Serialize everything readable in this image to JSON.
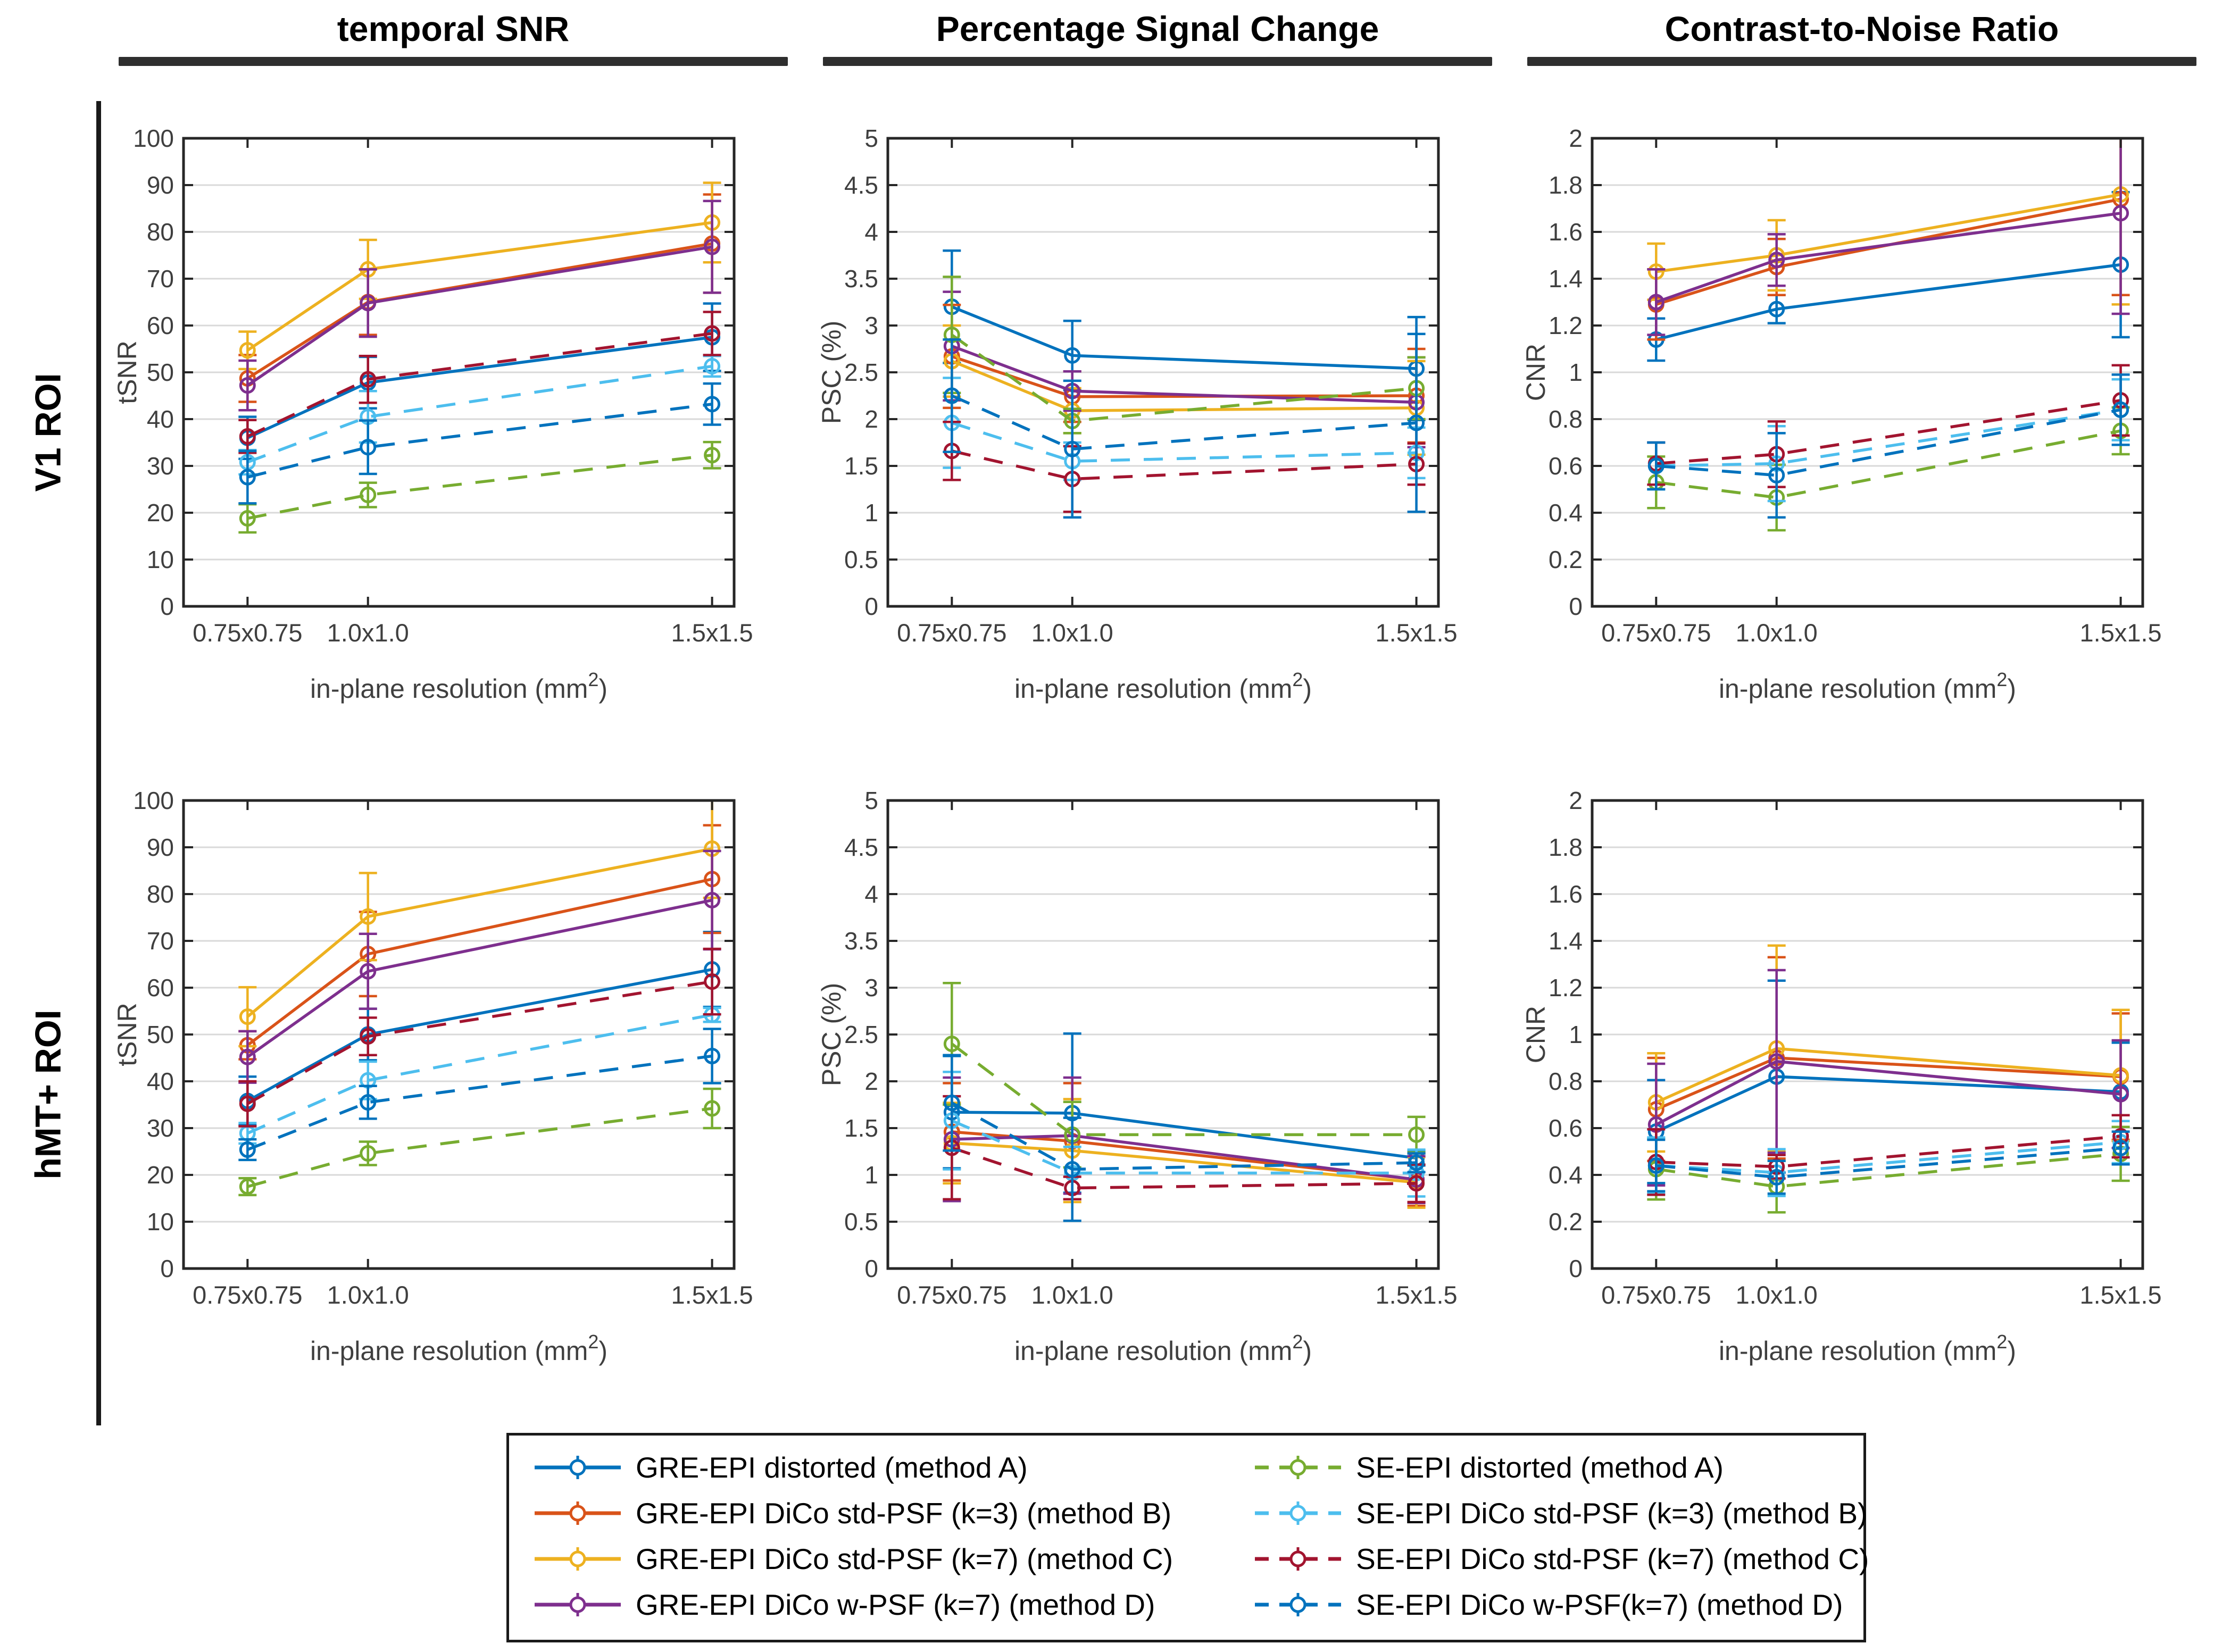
{
  "figure": {
    "column_titles": [
      "temporal SNR",
      "Percentage Signal Change",
      "Contrast-to-Noise Ratio"
    ],
    "row_labels": [
      "V1 ROI",
      "hMT+ ROI"
    ],
    "axis_color": "#262626",
    "tick_label_color": "#3f3f3f",
    "grid_color": "#d9d9d9"
  },
  "series_defs": [
    {
      "id": "gre-a",
      "label": "GRE-EPI distorted (method A)",
      "color": "#0072BD",
      "dashed": false
    },
    {
      "id": "gre-b",
      "label": "GRE-EPI DiCo std-PSF (k=3) (method B)",
      "color": "#D95319",
      "dashed": false
    },
    {
      "id": "gre-c",
      "label": "GRE-EPI DiCo std-PSF (k=7) (method C)",
      "color": "#EDB120",
      "dashed": false
    },
    {
      "id": "gre-d",
      "label": "GRE-EPI DiCo w-PSF (k=7) (method D)",
      "color": "#7E2F8E",
      "dashed": false
    },
    {
      "id": "se-a",
      "label": "SE-EPI distorted (method A)",
      "color": "#77AC30",
      "dashed": true
    },
    {
      "id": "se-b",
      "label": "SE-EPI DiCo std-PSF (k=3) (method B)",
      "color": "#4DBEEE",
      "dashed": true
    },
    {
      "id": "se-c",
      "label": "SE-EPI DiCo std-PSF (k=7) (method C)",
      "color": "#A2142F",
      "dashed": true
    },
    {
      "id": "se-d",
      "label": "SE-EPI DiCo w-PSF(k=7) (method D)",
      "color": "#0072BD",
      "dashed": true
    }
  ],
  "x_axis": {
    "x": [
      0.5625,
      1.0,
      2.25
    ],
    "xlim": [
      0.33,
      2.33
    ],
    "tick_labels": [
      "0.75x0.75",
      "1.0x1.0",
      "1.5x1.5"
    ],
    "label_pre": "in-plane resolution (mm",
    "label_sup": "2",
    "label_post": ")"
  },
  "chart_data": [
    {
      "type": "line",
      "row": "V1 ROI",
      "column": "temporal SNR",
      "ylabel": "tSNR",
      "ylim": [
        0,
        100
      ],
      "yticks": [
        0,
        10,
        20,
        30,
        40,
        50,
        60,
        70,
        80,
        90,
        100
      ],
      "ytick_labels": [
        "0",
        "10",
        "20",
        "30",
        "40",
        "50",
        "60",
        "70",
        "80",
        "90",
        "100"
      ],
      "series": [
        {
          "name": "GRE-EPI distorted (method A)",
          "values": [
            36.0,
            47.8,
            57.5
          ],
          "err": [
            4.5,
            5.5,
            7.2
          ]
        },
        {
          "name": "GRE-EPI DiCo std-PSF (k=3) (method B)",
          "values": [
            48.7,
            65.0,
            77.5
          ],
          "err": [
            5.0,
            7.0,
            10.5
          ]
        },
        {
          "name": "GRE-EPI DiCo std-PSF (k=7) (method C)",
          "values": [
            54.7,
            72.0,
            82.0
          ],
          "err": [
            4.0,
            6.3,
            8.5
          ]
        },
        {
          "name": "GRE-EPI DiCo w-PSF (k=7) (method D)",
          "values": [
            47.2,
            64.8,
            76.8
          ],
          "err": [
            5.3,
            7.2,
            9.8
          ]
        },
        {
          "name": "SE-EPI distorted (method A)",
          "values": [
            18.8,
            23.8,
            32.3
          ],
          "err": [
            3.0,
            2.6,
            2.8
          ]
        },
        {
          "name": "SE-EPI DiCo std-PSF (k=3) (method B)",
          "values": [
            30.8,
            40.5,
            51.3
          ],
          "err": [
            2.6,
            5.5,
            2.2
          ]
        },
        {
          "name": "SE-EPI DiCo std-PSF (k=7) (method C)",
          "values": [
            36.3,
            48.5,
            58.3
          ],
          "err": [
            3.5,
            5.0,
            4.6
          ]
        },
        {
          "name": "SE-EPI DiCo w-PSF(k=7) (method D)",
          "values": [
            27.6,
            34.0,
            43.2
          ],
          "err": [
            5.6,
            5.7,
            4.4
          ]
        }
      ]
    },
    {
      "type": "line",
      "row": "V1 ROI",
      "column": "Percentage Signal Change",
      "ylabel": "PSC (%)",
      "ylim": [
        0,
        5
      ],
      "yticks": [
        0,
        0.5,
        1,
        1.5,
        2,
        2.5,
        3,
        3.5,
        4,
        4.5,
        5
      ],
      "ytick_labels": [
        "0",
        "0.5",
        "1",
        "1.5",
        "2",
        "2.5",
        "3",
        "3.5",
        "4",
        "4.5",
        "5"
      ],
      "series": [
        {
          "name": "GRE-EPI distorted (method A)",
          "values": [
            3.2,
            2.68,
            2.54
          ],
          "err": [
            0.6,
            0.37,
            0.55
          ]
        },
        {
          "name": "GRE-EPI DiCo std-PSF (k=3) (method B)",
          "values": [
            2.67,
            2.24,
            2.25
          ],
          "err": [
            0.55,
            0.27,
            0.5
          ]
        },
        {
          "name": "GRE-EPI DiCo std-PSF (k=7) (method C)",
          "values": [
            2.62,
            2.09,
            2.12
          ],
          "err": [
            0.38,
            0.24,
            0.5
          ]
        },
        {
          "name": "GRE-EPI DiCo w-PSF (k=7) (method D)",
          "values": [
            2.78,
            2.3,
            2.18
          ],
          "err": [
            0.58,
            0.21,
            0.48
          ]
        },
        {
          "name": "SE-EPI distorted (method A)",
          "values": [
            2.9,
            1.98,
            2.33
          ],
          "err": [
            0.62,
            0.13,
            0.33
          ]
        },
        {
          "name": "SE-EPI DiCo std-PSF (k=3) (method B)",
          "values": [
            1.96,
            1.55,
            1.64
          ],
          "err": [
            0.48,
            0.2,
            0.27
          ]
        },
        {
          "name": "SE-EPI DiCo std-PSF (k=7) (method C)",
          "values": [
            1.66,
            1.36,
            1.52
          ],
          "err": [
            0.31,
            0.35,
            0.22
          ]
        },
        {
          "name": "SE-EPI DiCo w-PSF(k=7) (method D)",
          "values": [
            2.25,
            1.68,
            1.96
          ],
          "err": [
            0.6,
            0.73,
            0.95
          ]
        }
      ]
    },
    {
      "type": "line",
      "row": "V1 ROI",
      "column": "Contrast-to-Noise Ratio",
      "ylabel": "CNR",
      "ylim": [
        0,
        2
      ],
      "yticks": [
        0,
        0.2,
        0.4,
        0.6,
        0.8,
        1,
        1.2,
        1.4,
        1.6,
        1.8,
        2
      ],
      "ytick_labels": [
        "0",
        "0.2",
        "0.4",
        "0.6",
        "0.8",
        "1",
        "1.2",
        "1.4",
        "1.6",
        "1.8",
        "2"
      ],
      "series": [
        {
          "name": "GRE-EPI distorted (method A)",
          "values": [
            1.14,
            1.27,
            1.46
          ],
          "err": [
            0.09,
            0.06,
            0.31
          ]
        },
        {
          "name": "GRE-EPI DiCo std-PSF (k=3) (method B)",
          "values": [
            1.29,
            1.45,
            1.74
          ],
          "err": [
            0.15,
            0.12,
            0.41
          ]
        },
        {
          "name": "GRE-EPI DiCo std-PSF (k=7) (method C)",
          "values": [
            1.43,
            1.5,
            1.76
          ],
          "err": [
            0.12,
            0.15,
            0.47
          ]
        },
        {
          "name": "GRE-EPI DiCo w-PSF (k=7) (method D)",
          "values": [
            1.3,
            1.48,
            1.68
          ],
          "err": [
            0.14,
            0.11,
            0.43
          ]
        },
        {
          "name": "SE-EPI distorted (method A)",
          "values": [
            0.53,
            0.465,
            0.75
          ],
          "err": [
            0.11,
            0.14,
            0.1
          ]
        },
        {
          "name": "SE-EPI DiCo std-PSF (k=3) (method B)",
          "values": [
            0.6,
            0.61,
            0.84
          ],
          "err": [
            0.1,
            0.16,
            0.13
          ]
        },
        {
          "name": "SE-EPI DiCo std-PSF (k=7) (method C)",
          "values": [
            0.61,
            0.65,
            0.88
          ],
          "err": [
            0.09,
            0.14,
            0.15
          ]
        },
        {
          "name": "SE-EPI DiCo w-PSF(k=7) (method D)",
          "values": [
            0.6,
            0.56,
            0.84
          ],
          "err": [
            0.1,
            0.18,
            0.15
          ]
        }
      ]
    },
    {
      "type": "line",
      "row": "hMT+ ROI",
      "column": "temporal SNR",
      "ylabel": "tSNR",
      "ylim": [
        0,
        100
      ],
      "yticks": [
        0,
        10,
        20,
        30,
        40,
        50,
        60,
        70,
        80,
        90,
        100
      ],
      "ytick_labels": [
        "0",
        "10",
        "20",
        "30",
        "40",
        "50",
        "60",
        "70",
        "80",
        "90",
        "100"
      ],
      "series": [
        {
          "name": "GRE-EPI distorted (method A)",
          "values": [
            35.8,
            50.0,
            63.9
          ],
          "err": [
            5.2,
            5.5,
            8.0
          ]
        },
        {
          "name": "GRE-EPI DiCo std-PSF (k=3) (method B)",
          "values": [
            47.7,
            67.2,
            83.2
          ],
          "err": [
            3.0,
            9.0,
            11.5
          ]
        },
        {
          "name": "GRE-EPI DiCo std-PSF (k=7) (method C)",
          "values": [
            53.8,
            75.2,
            89.7
          ],
          "err": [
            6.3,
            9.3,
            10.5
          ]
        },
        {
          "name": "GRE-EPI DiCo w-PSF (k=7) (method D)",
          "values": [
            45.2,
            63.5,
            78.7
          ],
          "err": [
            5.5,
            8.0,
            10.5
          ]
        },
        {
          "name": "SE-EPI distorted (method A)",
          "values": [
            17.5,
            24.6,
            34.2
          ],
          "err": [
            1.8,
            2.5,
            4.2
          ]
        },
        {
          "name": "SE-EPI DiCo std-PSF (k=3) (method B)",
          "values": [
            28.9,
            40.2,
            54.2
          ],
          "err": [
            2.2,
            4.0,
            1.5
          ]
        },
        {
          "name": "SE-EPI DiCo std-PSF (k=7) (method C)",
          "values": [
            35.2,
            49.6,
            61.3
          ],
          "err": [
            4.8,
            4.0,
            7.0
          ]
        },
        {
          "name": "SE-EPI DiCo w-PSF(k=7) (method D)",
          "values": [
            25.4,
            35.5,
            45.4
          ],
          "err": [
            2.2,
            3.5,
            5.8
          ]
        }
      ]
    },
    {
      "type": "line",
      "row": "hMT+ ROI",
      "column": "Percentage Signal Change",
      "ylabel": "PSC (%)",
      "ylim": [
        0,
        5
      ],
      "yticks": [
        0,
        0.5,
        1,
        1.5,
        2,
        2.5,
        3,
        3.5,
        4,
        4.5,
        5
      ],
      "ytick_labels": [
        "0",
        "0.5",
        "1",
        "1.5",
        "2",
        "2.5",
        "3",
        "3.5",
        "4",
        "4.5",
        "5"
      ],
      "series": [
        {
          "name": "GRE-EPI distorted (method A)",
          "values": [
            1.67,
            1.66,
            1.18
          ],
          "err": [
            0.6,
            0.85,
            0.08
          ]
        },
        {
          "name": "GRE-EPI DiCo std-PSF (k=3) (method B)",
          "values": [
            1.46,
            1.36,
            0.95
          ],
          "err": [
            0.52,
            0.62,
            0.28
          ]
        },
        {
          "name": "GRE-EPI DiCo std-PSF (k=7) (method C)",
          "values": [
            1.34,
            1.26,
            0.92
          ],
          "err": [
            0.43,
            0.55,
            0.27
          ]
        },
        {
          "name": "GRE-EPI DiCo w-PSF (k=7) (method D)",
          "values": [
            1.38,
            1.42,
            0.95
          ],
          "err": [
            0.66,
            0.62,
            0.25
          ]
        },
        {
          "name": "SE-EPI distorted (method A)",
          "values": [
            2.4,
            1.43,
            1.43
          ],
          "err": [
            0.65,
            0.35,
            0.19
          ]
        },
        {
          "name": "SE-EPI DiCo std-PSF (k=3) (method B)",
          "values": [
            1.58,
            1.02,
            1.02
          ],
          "err": [
            0.52,
            0.28,
            0.25
          ]
        },
        {
          "name": "SE-EPI DiCo std-PSF (k=7) (method C)",
          "values": [
            1.29,
            0.86,
            0.91
          ],
          "err": [
            0.55,
            0.12,
            0.2
          ]
        },
        {
          "name": "SE-EPI DiCo w-PSF(k=7) (method D)",
          "values": [
            1.77,
            1.06,
            1.13
          ],
          "err": [
            0.51,
            0.55,
            0.1
          ]
        }
      ]
    },
    {
      "type": "line",
      "row": "hMT+ ROI",
      "column": "Contrast-to-Noise Ratio",
      "ylabel": "CNR",
      "ylim": [
        0,
        2
      ],
      "yticks": [
        0,
        0.2,
        0.4,
        0.6,
        0.8,
        1,
        1.2,
        1.4,
        1.6,
        1.8,
        2
      ],
      "ytick_labels": [
        "0",
        "0.2",
        "0.4",
        "0.6",
        "0.8",
        "1",
        "1.2",
        "1.4",
        "1.6",
        "1.8",
        "2"
      ],
      "series": [
        {
          "name": "GRE-EPI distorted (method A)",
          "values": [
            0.585,
            0.82,
            0.755
          ],
          "err": [
            0.22,
            0.41,
            0.21
          ]
        },
        {
          "name": "GRE-EPI DiCo std-PSF (k=3) (method B)",
          "values": [
            0.68,
            0.9,
            0.82
          ],
          "err": [
            0.22,
            0.43,
            0.27
          ]
        },
        {
          "name": "GRE-EPI DiCo std-PSF (k=7) (method C)",
          "values": [
            0.71,
            0.94,
            0.825
          ],
          "err": [
            0.21,
            0.44,
            0.28
          ]
        },
        {
          "name": "GRE-EPI DiCo w-PSF (k=7) (method D)",
          "values": [
            0.615,
            0.885,
            0.745
          ],
          "err": [
            0.26,
            0.39,
            0.23
          ]
        },
        {
          "name": "SE-EPI distorted (method A)",
          "values": [
            0.425,
            0.35,
            0.49
          ],
          "err": [
            0.13,
            0.11,
            0.115
          ]
        },
        {
          "name": "SE-EPI DiCo std-PSF (k=3) (method B)",
          "values": [
            0.44,
            0.41,
            0.54
          ],
          "err": [
            0.12,
            0.1,
            0.09
          ]
        },
        {
          "name": "SE-EPI DiCo std-PSF (k=7) (method C)",
          "values": [
            0.455,
            0.435,
            0.565
          ],
          "err": [
            0.14,
            0.05,
            0.09
          ]
        },
        {
          "name": "SE-EPI DiCo w-PSF(k=7) (method D)",
          "values": [
            0.44,
            0.39,
            0.515
          ],
          "err": [
            0.11,
            0.07,
            0.07
          ]
        }
      ]
    }
  ]
}
